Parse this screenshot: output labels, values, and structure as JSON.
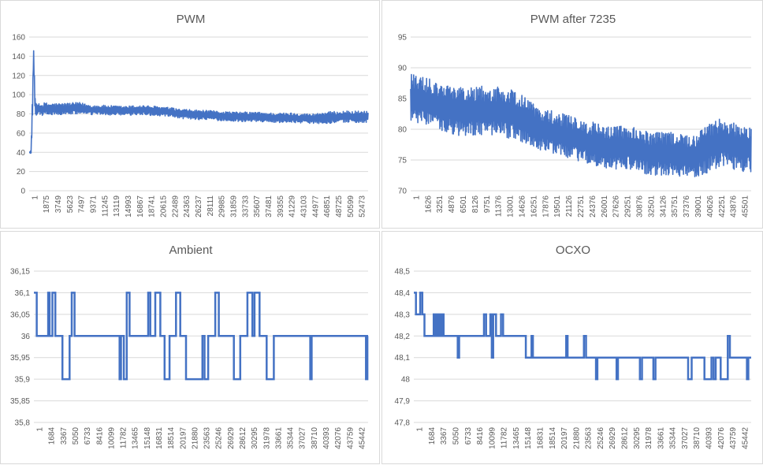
{
  "chart_data": [
    {
      "type": "line",
      "title": "PWM",
      "xlabel": "",
      "ylabel": "",
      "ylim": [
        0,
        160
      ],
      "yticks": [
        "0",
        "20",
        "40",
        "60",
        "80",
        "100",
        "120",
        "140",
        "160"
      ],
      "xlim": [
        1,
        54000
      ],
      "xticks": [
        "1",
        "1875",
        "3749",
        "5623",
        "7497",
        "9371",
        "11245",
        "13119",
        "14993",
        "16867",
        "18741",
        "20615",
        "22489",
        "24363",
        "26237",
        "28111",
        "29985",
        "31859",
        "33733",
        "35607",
        "37481",
        "39355",
        "41229",
        "43103",
        "44977",
        "46851",
        "48725",
        "50599",
        "52473"
      ],
      "grid": "horizontal",
      "series": [
        {
          "color": "#4472c4",
          "x": [
            1,
            300,
            500,
            700,
            800,
            900,
            1000,
            1200,
            1500,
            2000,
            2500,
            3000,
            5000,
            8000,
            10000,
            12000,
            15000,
            18000,
            20000,
            22000,
            24000,
            27000,
            30000,
            33000,
            36000,
            39000,
            42000,
            45000,
            47000,
            50000,
            52000,
            54000
          ],
          "y": [
            40,
            40,
            80,
            145,
            120,
            95,
            88,
            84,
            86,
            84,
            86,
            85,
            85,
            86,
            84,
            84,
            83,
            84,
            83,
            82,
            80,
            79,
            78,
            77,
            77,
            76,
            76,
            75,
            76,
            77,
            77,
            77
          ],
          "spread": [
            0,
            2,
            20,
            4,
            14,
            10,
            8,
            6,
            6,
            6,
            6,
            6,
            6,
            6,
            5,
            5,
            5,
            5,
            5,
            5,
            5,
            5,
            5,
            5,
            5,
            5,
            5,
            5,
            6,
            6,
            6,
            6
          ]
        }
      ]
    },
    {
      "type": "line",
      "title": "PWM after 7235",
      "xlabel": "",
      "ylabel": "",
      "ylim": [
        70,
        95
      ],
      "yticks": [
        "70",
        "75",
        "80",
        "85",
        "90",
        "95"
      ],
      "xlim": [
        1,
        46800
      ],
      "xticks": [
        "1",
        "1626",
        "3251",
        "4876",
        "6501",
        "8126",
        "9751",
        "11376",
        "13001",
        "14626",
        "16251",
        "17876",
        "19501",
        "21126",
        "22751",
        "24376",
        "26001",
        "27626",
        "29251",
        "30876",
        "32501",
        "34126",
        "35751",
        "37376",
        "39001",
        "40626",
        "42251",
        "43876",
        "45501"
      ],
      "grid": "horizontal",
      "series": [
        {
          "color": "#4472c4",
          "x": [
            1,
            1000,
            3000,
            6000,
            9000,
            12000,
            15000,
            18000,
            21000,
            24000,
            27000,
            30000,
            33000,
            36000,
            39000,
            41000,
            43000,
            45000,
            46800
          ],
          "y": [
            85,
            85,
            84,
            83,
            83,
            83,
            82,
            80,
            79,
            78,
            77,
            77,
            76,
            76,
            75.5,
            77,
            78,
            77,
            77
          ],
          "spread": [
            4,
            4,
            4,
            4,
            4,
            4,
            4,
            3.5,
            3.5,
            3.5,
            3.5,
            3.5,
            3.5,
            3.5,
            3.5,
            4,
            4,
            4,
            4
          ]
        }
      ]
    },
    {
      "type": "line",
      "title": "Ambient",
      "xlabel": "",
      "ylabel": "",
      "ylim": [
        35.8,
        36.15
      ],
      "yticks": [
        "35,8",
        "35,85",
        "35,9",
        "35,95",
        "36",
        "36,05",
        "36,1",
        "36,15"
      ],
      "xlim": [
        1,
        46800
      ],
      "xticks": [
        "1",
        "1684",
        "3367",
        "5050",
        "6733",
        "8416",
        "10099",
        "11782",
        "13465",
        "15148",
        "16831",
        "18514",
        "20197",
        "21880",
        "23563",
        "25246",
        "26929",
        "28612",
        "30295",
        "31978",
        "33661",
        "35344",
        "37027",
        "38710",
        "40393",
        "42076",
        "43759",
        "45442"
      ],
      "grid": "horizontal",
      "series": [
        {
          "color": "#4472c4",
          "x": [
            1,
            400,
            400,
            2000,
            2000,
            2200,
            2200,
            2600,
            2600,
            3000,
            3000,
            4000,
            4000,
            5000,
            5000,
            5300,
            5300,
            5700,
            5700,
            12000,
            12000,
            12200,
            12200,
            12600,
            12600,
            13000,
            13000,
            13400,
            13400,
            16000,
            16000,
            16300,
            16300,
            17000,
            17000,
            17700,
            17700,
            18300,
            18300,
            19000,
            19000,
            19900,
            19900,
            20500,
            20500,
            21300,
            21300,
            23600,
            23600,
            23900,
            23900,
            24400,
            24400,
            25400,
            25400,
            25900,
            25900,
            28000,
            28000,
            28900,
            28900,
            29900,
            29900,
            30600,
            30600,
            30900,
            30900,
            31600,
            31600,
            32600,
            32600,
            33600,
            33600,
            38700,
            38700,
            38900,
            38900,
            46500,
            46500,
            46700,
            46700,
            46800
          ],
          "y": [
            36.1,
            36.1,
            36,
            36,
            36.1,
            36.1,
            36,
            36,
            36.1,
            36.1,
            36,
            36,
            35.9,
            35.9,
            36,
            36,
            36.1,
            36.1,
            36,
            36,
            35.9,
            35.9,
            36,
            36,
            35.9,
            35.9,
            36.1,
            36.1,
            36,
            36,
            36.1,
            36.1,
            36,
            36,
            36.1,
            36.1,
            36,
            36,
            35.9,
            35.9,
            36,
            36,
            36.1,
            36.1,
            36,
            36,
            35.9,
            35.9,
            36,
            36,
            35.9,
            35.9,
            36,
            36,
            36.1,
            36.1,
            36,
            36,
            35.9,
            35.9,
            36,
            36,
            36.1,
            36.1,
            36,
            36,
            36.1,
            36.1,
            36,
            36,
            35.9,
            35.9,
            36,
            36,
            35.9,
            35.9,
            36,
            36,
            35.9,
            35.9,
            36,
            36
          ]
        }
      ]
    },
    {
      "type": "line",
      "title": "OCXO",
      "xlabel": "",
      "ylabel": "",
      "ylim": [
        47.8,
        48.5
      ],
      "yticks": [
        "47,8",
        "47,9",
        "48",
        "48,1",
        "48,2",
        "48,3",
        "48,4",
        "48,5"
      ],
      "xlim": [
        1,
        47600
      ],
      "xticks": [
        "1",
        "1684",
        "3367",
        "5050",
        "6733",
        "8416",
        "10099",
        "11782",
        "13465",
        "15148",
        "16831",
        "18514",
        "20197",
        "21880",
        "23563",
        "25246",
        "26929",
        "28612",
        "30295",
        "31978",
        "33661",
        "35344",
        "37027",
        "38710",
        "40393",
        "42076",
        "43759",
        "45442"
      ],
      "grid": "horizontal",
      "series": [
        {
          "color": "#4472c4",
          "x": [
            1,
            300,
            300,
            900,
            900,
            1200,
            1200,
            1500,
            1500,
            2800,
            2800,
            3000,
            3000,
            3200,
            3200,
            3400,
            3400,
            3600,
            3600,
            3800,
            3800,
            4000,
            4000,
            4200,
            4200,
            6200,
            6200,
            6400,
            6400,
            9900,
            9900,
            10200,
            10200,
            10800,
            10800,
            11000,
            11000,
            11200,
            11200,
            11600,
            11600,
            12300,
            12300,
            12600,
            12600,
            15800,
            15800,
            16600,
            16600,
            16800,
            16800,
            21500,
            21500,
            21700,
            21700,
            24000,
            24000,
            24300,
            24300,
            25700,
            25700,
            25900,
            25900,
            28600,
            28600,
            28800,
            28800,
            31900,
            31900,
            32200,
            32200,
            33800,
            33800,
            34100,
            34100,
            38700,
            38700,
            39200,
            39200,
            41000,
            41000,
            42000,
            42000,
            42300,
            42300,
            42600,
            42600,
            43300,
            43300,
            44300,
            44300,
            44600,
            44600,
            47000,
            47000,
            47200,
            47200,
            47600
          ],
          "y": [
            48.4,
            48.4,
            48.3,
            48.3,
            48.4,
            48.4,
            48.3,
            48.3,
            48.2,
            48.2,
            48.3,
            48.3,
            48.2,
            48.2,
            48.3,
            48.3,
            48.2,
            48.2,
            48.3,
            48.3,
            48.2,
            48.2,
            48.3,
            48.3,
            48.2,
            48.2,
            48.1,
            48.1,
            48.2,
            48.2,
            48.3,
            48.3,
            48.2,
            48.2,
            48.3,
            48.3,
            48.1,
            48.1,
            48.3,
            48.3,
            48.2,
            48.2,
            48.3,
            48.3,
            48.2,
            48.2,
            48.1,
            48.1,
            48.2,
            48.2,
            48.1,
            48.1,
            48.2,
            48.2,
            48.1,
            48.1,
            48.2,
            48.2,
            48.1,
            48.1,
            48.0,
            48.0,
            48.1,
            48.1,
            48.0,
            48.0,
            48.1,
            48.1,
            48.0,
            48.0,
            48.1,
            48.1,
            48.0,
            48.0,
            48.1,
            48.1,
            48.0,
            48.0,
            48.1,
            48.1,
            48.0,
            48.0,
            48.1,
            48.1,
            48.0,
            48.0,
            48.1,
            48.1,
            48.0,
            48.0,
            48.2,
            48.2,
            48.1,
            48.1,
            48.0,
            48.0,
            48.1,
            48.1
          ]
        }
      ]
    }
  ]
}
